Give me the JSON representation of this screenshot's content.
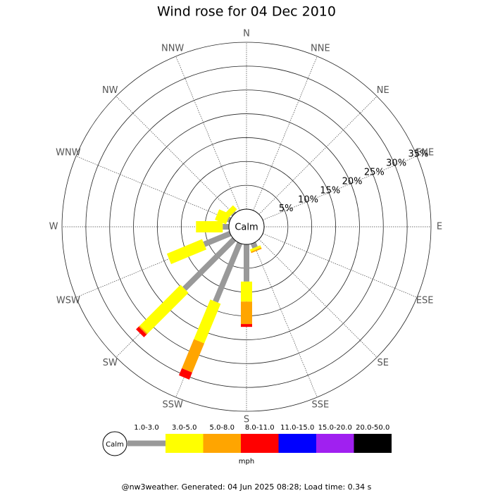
{
  "chart_data": {
    "type": "wind-rose",
    "title": "Wind rose for 04 Dec 2010",
    "categories": [
      "N",
      "NNE",
      "NE",
      "ENE",
      "E",
      "ESE",
      "SE",
      "SSE",
      "S",
      "SSW",
      "SW",
      "WSW",
      "W",
      "WNW",
      "NW",
      "NNW"
    ],
    "series": [
      {
        "name": "1.0-3.0",
        "color": "#999999",
        "values": [
          0,
          0,
          0,
          0,
          0,
          0,
          0,
          1.0,
          7.8,
          13.3,
          14.7,
          5.9,
          1.3,
          0.5,
          0.3,
          0
        ]
      },
      {
        "name": "3.0-5.0",
        "color": "#ffff00",
        "values": [
          0,
          0,
          0,
          0,
          0,
          0,
          0,
          0.5,
          4.2,
          9.0,
          12.1,
          8.0,
          5.6,
          2.5,
          1.2,
          0
        ]
      },
      {
        "name": "5.0-8.0",
        "color": "#ffa500",
        "values": [
          0,
          0,
          0,
          0,
          0,
          0,
          0,
          0.3,
          4.7,
          6.6,
          0.3,
          0,
          0,
          0,
          0,
          0
        ]
      },
      {
        "name": "8.0-11.0",
        "color": "#ff0000",
        "values": [
          0,
          0,
          0,
          0,
          0,
          0,
          0,
          0,
          0.6,
          1.6,
          0.8,
          0,
          0,
          0,
          0,
          0
        ]
      },
      {
        "name": "11.0-15.0",
        "color": "#0000ff",
        "values": [
          0,
          0,
          0,
          0,
          0,
          0,
          0,
          0,
          0,
          0,
          0,
          0,
          0,
          0,
          0,
          0
        ]
      },
      {
        "name": "15.0-20.0",
        "color": "#a020f0",
        "values": [
          0,
          0,
          0,
          0,
          0,
          0,
          0,
          0,
          0,
          0,
          0,
          0,
          0,
          0,
          0,
          0
        ]
      },
      {
        "name": "20.0-50.0",
        "color": "#000000",
        "values": [
          0,
          0,
          0,
          0,
          0,
          0,
          0,
          0,
          0,
          0,
          0,
          0,
          0,
          0,
          0,
          0
        ]
      }
    ],
    "rlim": [
      0,
      35
    ],
    "rticks": [
      {
        "value": 5,
        "label": "5%"
      },
      {
        "value": 10,
        "label": "10%"
      },
      {
        "value": 15,
        "label": "15%"
      },
      {
        "value": 20,
        "label": "20%"
      },
      {
        "value": 25,
        "label": "25%"
      },
      {
        "value": 30,
        "label": "30%"
      },
      {
        "value": 35,
        "label": "35%"
      }
    ],
    "calm_label": "Calm",
    "legend_unit": "mph",
    "footer": "@nw3weather. Generated: 04 Jun 2025 08:28; Load time: 0.34 s"
  }
}
